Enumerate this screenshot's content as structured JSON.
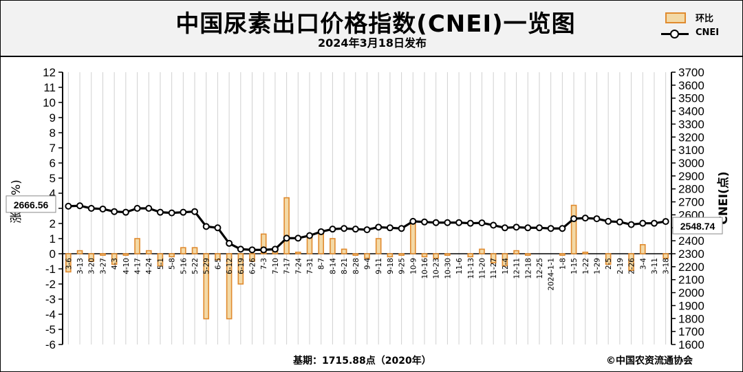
{
  "header": {
    "title": "中国尿素出口价格指数(CNEI)一览图",
    "subtitle": "2024年3月18日发布"
  },
  "legend": {
    "bar_label": "环比",
    "line_label": "CNEI"
  },
  "colors": {
    "bar_fill": "#f3d9a6",
    "bar_stroke": "#e08a2e",
    "line": "#000000",
    "header_bg": "#f2f2f2"
  },
  "footer": {
    "base_text": "基期：1715.88点（2020年）",
    "copyright": "©中国农资流通协会"
  },
  "chart_data": {
    "type": "bar+line",
    "categories": [
      "3-6",
      "3-13",
      "3-20",
      "3-27",
      "4-3",
      "4-10",
      "4-17",
      "4-24",
      "5-1",
      "5-8",
      "5-16",
      "5-22",
      "5-29",
      "6-5",
      "6-12",
      "6-19",
      "6-26",
      "7-3",
      "7-10",
      "7-17",
      "7-24",
      "7-31",
      "8-7",
      "8-14",
      "8-21",
      "8-28",
      "9-4",
      "9-11",
      "9-18",
      "9-25",
      "10-9",
      "10-16",
      "10-23",
      "10-30",
      "11-6",
      "11-13",
      "11-20",
      "11-27",
      "12-4",
      "12-11",
      "12-18",
      "12-25",
      "2024-1-1",
      "1-8",
      "1-15",
      "1-22",
      "1-29",
      "2-5",
      "2-19",
      "2-26",
      "3-4",
      "3-11",
      "3-18"
    ],
    "series": [
      {
        "name": "环比",
        "axis": "left",
        "values": [
          -1.2,
          0.2,
          -0.5,
          -0.1,
          -0.7,
          -0.1,
          1.0,
          0.2,
          -0.8,
          -0.2,
          0.4,
          0.4,
          -4.3,
          -0.4,
          -4.3,
          -2.0,
          -0.5,
          1.3,
          0.2,
          3.7,
          0.1,
          1.2,
          1.4,
          1.0,
          0.3,
          -0.1,
          -0.3,
          1.0,
          -0.2,
          -0.1,
          2.0,
          -0.2,
          -0.3,
          -0.1,
          0.0,
          -0.2,
          0.3,
          -0.6,
          -0.8,
          0.2,
          -0.1,
          0.0,
          0.0,
          -0.1,
          3.2,
          0.1,
          0.0,
          -0.7,
          0.0,
          -1.1,
          0.6,
          0.0,
          -0.3
        ]
      },
      {
        "name": "CNEI",
        "axis": "right",
        "values": [
          2666.56,
          2670,
          2650,
          2645,
          2625,
          2620,
          2650,
          2650,
          2620,
          2615,
          2620,
          2625,
          2510,
          2500,
          2380,
          2335,
          2330,
          2330,
          2335,
          2420,
          2420,
          2440,
          2470,
          2490,
          2495,
          2490,
          2485,
          2505,
          2500,
          2495,
          2550,
          2545,
          2540,
          2540,
          2540,
          2535,
          2538,
          2520,
          2500,
          2505,
          2500,
          2500,
          2495,
          2495,
          2570,
          2575,
          2570,
          2550,
          2545,
          2525,
          2535,
          2535,
          2548.74
        ]
      }
    ],
    "y_left": {
      "label": "涨跌(%)",
      "min": -6,
      "max": 12,
      "ticks": [
        "12",
        "11",
        "10",
        "9",
        "8",
        "7",
        "6",
        "5",
        "4",
        "3",
        "2",
        "1",
        "0",
        "-1",
        "-2",
        "-3",
        "-4",
        "-5",
        "-6"
      ]
    },
    "y_right": {
      "label": "CNEI(点)",
      "min": 1600,
      "max": 3700,
      "ticks": [
        "3700",
        "3600",
        "3500",
        "3400",
        "3300",
        "3200",
        "3100",
        "3000",
        "2900",
        "2800",
        "2700",
        "2600",
        "2500",
        "2400",
        "2300",
        "2200",
        "2100",
        "2000",
        "1900",
        "1800",
        "1700",
        "1600"
      ]
    },
    "annotations": {
      "first_value": "2666.56",
      "last_value": "2548.74"
    },
    "grid": "vertical"
  }
}
